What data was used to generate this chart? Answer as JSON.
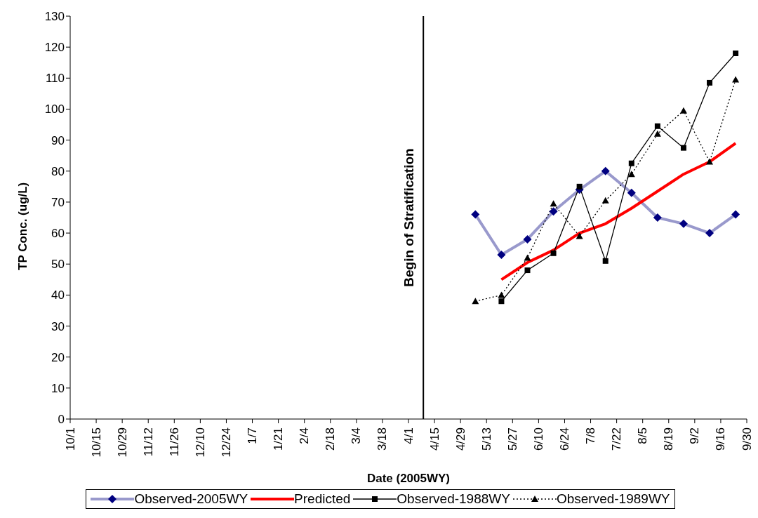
{
  "chart_data": {
    "type": "line",
    "xlabel": "Date (2005WY)",
    "ylabel": "TP Conc. (ug/L)",
    "x": [
      "2005-05-07",
      "2005-05-21",
      "2005-06-04",
      "2005-06-18",
      "2005-07-02",
      "2005-07-16",
      "2005-07-30",
      "2005-08-13",
      "2005-08-27",
      "2005-09-10",
      "2005-09-24"
    ],
    "series": [
      {
        "name": "Observed-2005WY",
        "color": "#9999cc",
        "marker": "diamond",
        "line_style": "solid",
        "values": [
          66,
          53,
          58,
          67,
          74,
          80,
          73,
          65,
          63,
          60,
          66
        ]
      },
      {
        "name": "Predicted",
        "color": "#ff0000",
        "marker": "none",
        "line_style": "solid",
        "values": [
          null,
          45,
          50.5,
          54.5,
          60,
          63,
          68,
          73.5,
          79,
          83,
          89
        ]
      },
      {
        "name": "Observed-1988WY",
        "color": "#000000",
        "marker": "square",
        "line_style": "solid",
        "values": [
          null,
          38,
          48,
          53.5,
          75,
          51,
          82.5,
          94.5,
          87.5,
          108.5,
          118
        ]
      },
      {
        "name": "Observed-1989WY",
        "color": "#000000",
        "marker": "triangle",
        "line_style": "dotted",
        "values": [
          38,
          40,
          52,
          69.5,
          59,
          70.5,
          79,
          92,
          99.5,
          83,
          109.5
        ]
      }
    ],
    "xlim": [
      "2004-10-01",
      "2005-09-30"
    ],
    "xticks": [
      {
        "value": "2004-10-01",
        "label": "10/1"
      },
      {
        "value": "2004-10-15",
        "label": "10/15"
      },
      {
        "value": "2004-10-29",
        "label": "10/29"
      },
      {
        "value": "2004-11-12",
        "label": "11/12"
      },
      {
        "value": "2004-11-26",
        "label": "11/26"
      },
      {
        "value": "2004-12-10",
        "label": "12/10"
      },
      {
        "value": "2004-12-24",
        "label": "12/24"
      },
      {
        "value": "2005-01-07",
        "label": "1/7"
      },
      {
        "value": "2005-01-21",
        "label": "1/21"
      },
      {
        "value": "2005-02-04",
        "label": "2/4"
      },
      {
        "value": "2005-02-18",
        "label": "2/18"
      },
      {
        "value": "2005-03-04",
        "label": "3/4"
      },
      {
        "value": "2005-03-18",
        "label": "3/18"
      },
      {
        "value": "2005-04-01",
        "label": "4/1"
      },
      {
        "value": "2005-04-15",
        "label": "4/15"
      },
      {
        "value": "2005-04-29",
        "label": "4/29"
      },
      {
        "value": "2005-05-13",
        "label": "5/13"
      },
      {
        "value": "2005-05-27",
        "label": "5/27"
      },
      {
        "value": "2005-06-10",
        "label": "6/10"
      },
      {
        "value": "2005-06-24",
        "label": "6/24"
      },
      {
        "value": "2005-07-08",
        "label": "7/8"
      },
      {
        "value": "2005-07-22",
        "label": "7/22"
      },
      {
        "value": "2005-08-05",
        "label": "8/5"
      },
      {
        "value": "2005-08-19",
        "label": "8/19"
      },
      {
        "value": "2005-09-02",
        "label": "9/2"
      },
      {
        "value": "2005-09-16",
        "label": "9/16"
      },
      {
        "value": "2005-09-30",
        "label": "9/30"
      }
    ],
    "ylim": [
      0,
      130
    ],
    "yticks": [
      0,
      10,
      20,
      30,
      40,
      50,
      60,
      70,
      80,
      90,
      100,
      110,
      120,
      130
    ],
    "ref_lines": [
      {
        "axis": "x",
        "value": "2005-04-09",
        "label": "Begin of Stratification",
        "color": "#000000"
      }
    ],
    "grid": false,
    "legend": "bottom"
  }
}
